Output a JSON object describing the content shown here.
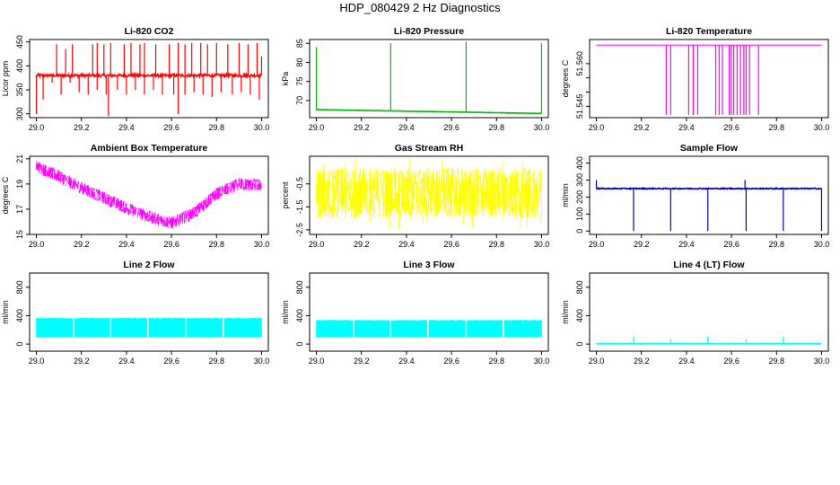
{
  "page_title": "HDP_080429  2 Hz Diagnostics",
  "chart_data": [
    {
      "id": "co2",
      "type": "line",
      "title": "Li-820 CO2",
      "xlabel": "",
      "ylabel": "Licor ppm",
      "xlim": [
        28.97,
        30.03
      ],
      "ylim": [
        292,
        455
      ],
      "xticks": [
        "29.0",
        "29.2",
        "29.4",
        "29.6",
        "29.8",
        "30.0"
      ],
      "yticks": [
        "300",
        "350",
        "400",
        "450"
      ],
      "color": "#ff0000",
      "series": [
        {
          "x": [
            29.0,
            29.2,
            29.4,
            29.6,
            29.8,
            30.0
          ],
          "values": [
            380,
            380,
            380,
            380,
            380,
            380
          ]
        }
      ],
      "pattern": "noisy",
      "noise": 3,
      "spikes_up": [
        [
          29.01,
          385
        ],
        [
          29.04,
          382
        ],
        [
          29.06,
          382
        ],
        [
          29.09,
          445
        ],
        [
          29.13,
          435
        ],
        [
          29.16,
          445
        ],
        [
          29.2,
          385
        ],
        [
          29.25,
          445
        ],
        [
          29.27,
          448
        ],
        [
          29.3,
          445
        ],
        [
          29.33,
          448
        ],
        [
          29.39,
          445
        ],
        [
          29.42,
          448
        ],
        [
          29.46,
          445
        ],
        [
          29.48,
          448
        ],
        [
          29.53,
          445
        ],
        [
          29.59,
          445
        ],
        [
          29.63,
          448
        ],
        [
          29.66,
          445
        ],
        [
          29.69,
          448
        ],
        [
          29.73,
          448
        ],
        [
          29.76,
          445
        ],
        [
          29.8,
          448
        ],
        [
          29.85,
          445
        ],
        [
          29.9,
          448
        ],
        [
          29.92,
          385
        ],
        [
          29.94,
          445
        ],
        [
          29.98,
          448
        ],
        [
          30.0,
          420
        ]
      ],
      "spikes_down": [
        [
          29.0,
          300
        ],
        [
          29.03,
          330
        ],
        [
          29.07,
          365
        ],
        [
          29.11,
          340
        ],
        [
          29.15,
          365
        ],
        [
          29.19,
          345
        ],
        [
          29.23,
          340
        ],
        [
          29.27,
          350
        ],
        [
          29.31,
          340
        ],
        [
          29.32,
          295
        ],
        [
          29.36,
          350
        ],
        [
          29.4,
          340
        ],
        [
          29.44,
          350
        ],
        [
          29.48,
          340
        ],
        [
          29.52,
          350
        ],
        [
          29.56,
          340
        ],
        [
          29.61,
          340
        ],
        [
          29.63,
          300
        ],
        [
          29.66,
          340
        ],
        [
          29.7,
          345
        ],
        [
          29.74,
          340
        ],
        [
          29.78,
          335
        ],
        [
          29.82,
          345
        ],
        [
          29.87,
          340
        ],
        [
          29.91,
          345
        ],
        [
          29.95,
          340
        ],
        [
          29.99,
          330
        ]
      ]
    },
    {
      "id": "pressure",
      "type": "line",
      "title": "Li-820 Pressure",
      "xlabel": "",
      "ylabel": "kPa",
      "xlim": [
        28.97,
        30.03
      ],
      "ylim": [
        65.5,
        86
      ],
      "xticks": [
        "29.0",
        "29.2",
        "29.4",
        "29.6",
        "29.8",
        "30.0"
      ],
      "yticks": [
        "70",
        "75",
        "80",
        "85"
      ],
      "color": "#00bb00",
      "series": [
        {
          "x": [
            29.0,
            30.0
          ],
          "values": [
            67.6,
            66.6
          ]
        }
      ],
      "pattern": "noisy",
      "noise": 0.05,
      "spikes_up": [
        [
          29.0,
          84
        ],
        [
          29.33,
          85
        ],
        [
          29.665,
          85.4
        ],
        [
          30.0,
          85
        ]
      ],
      "spikes_down": []
    },
    {
      "id": "licor-temp",
      "type": "line",
      "title": "Li-820 Temperature",
      "xlabel": "",
      "ylabel": "degrees C",
      "xlim": [
        28.97,
        30.03
      ],
      "ylim": [
        51.541,
        51.5685
      ],
      "xticks": [
        "29.0",
        "29.2",
        "29.4",
        "29.6",
        "29.8",
        "30.0"
      ],
      "yticks": [
        "51.545",
        "51.550",
        "51.555",
        "51.560"
      ],
      "ytick_values": [
        51.545,
        51.55,
        51.555,
        51.56
      ],
      "ytick_labels_shown": [
        "51.545",
        "51.560"
      ],
      "color": "#ff00ff",
      "series": [
        {
          "x": [
            29.0,
            30.0
          ],
          "values": [
            51.5665,
            51.5665
          ]
        }
      ],
      "pattern": "flat",
      "noise": 0,
      "spikes_up": [],
      "spikes_down": [
        [
          29.31,
          51.542
        ],
        [
          29.33,
          51.542
        ],
        [
          29.41,
          51.542
        ],
        [
          29.43,
          51.542
        ],
        [
          29.45,
          51.542
        ],
        [
          29.53,
          51.542
        ],
        [
          29.545,
          51.542
        ],
        [
          29.56,
          51.542
        ],
        [
          29.59,
          51.542
        ],
        [
          29.6,
          51.542
        ],
        [
          29.61,
          51.542
        ],
        [
          29.625,
          51.542
        ],
        [
          29.64,
          51.542
        ],
        [
          29.655,
          51.542
        ],
        [
          29.665,
          51.542
        ],
        [
          29.68,
          51.542
        ],
        [
          29.72,
          51.542
        ]
      ]
    },
    {
      "id": "ambient-temp",
      "type": "line",
      "title": "Ambient Box Temperature",
      "xlabel": "",
      "ylabel": "degrees C",
      "xlim": [
        28.97,
        30.03
      ],
      "ylim": [
        15,
        21.2
      ],
      "xticks": [
        "29.0",
        "29.2",
        "29.4",
        "29.6",
        "29.8",
        "30.0"
      ],
      "yticks": [
        "15",
        "17",
        "19",
        "21"
      ],
      "color": "#ff00ff",
      "series": [
        {
          "x": [
            29.0,
            29.1,
            29.2,
            29.3,
            29.4,
            29.5,
            29.6,
            29.7,
            29.8,
            29.9,
            30.0
          ],
          "values": [
            20.4,
            19.6,
            18.7,
            17.9,
            17.1,
            16.4,
            15.9,
            16.7,
            18.2,
            19.0,
            18.9
          ]
        }
      ],
      "pattern": "band",
      "noise": 0.5,
      "spikes_up": [],
      "spikes_down": []
    },
    {
      "id": "rh",
      "type": "line",
      "title": "Gas Stream RH",
      "xlabel": "",
      "ylabel": "percent",
      "xlim": [
        28.97,
        30.03
      ],
      "ylim": [
        -2.7,
        0.7
      ],
      "xticks": [
        "29.0",
        "29.2",
        "29.4",
        "29.6",
        "29.8",
        "30.0"
      ],
      "yticks": [
        "-2.5",
        "-1.5",
        "-0.5"
      ],
      "color": "#ffff00",
      "series": [
        {
          "x": [
            29.0,
            30.0
          ],
          "values": [
            -0.9,
            -0.9
          ]
        }
      ],
      "pattern": "band",
      "noise": 1.1,
      "spikes_up": [],
      "spikes_down": []
    },
    {
      "id": "sample-flow",
      "type": "line",
      "title": "Sample Flow",
      "xlabel": "",
      "ylabel": "ml/min",
      "xlim": [
        28.97,
        30.03
      ],
      "ylim": [
        -20,
        440
      ],
      "xticks": [
        "29.0",
        "29.2",
        "29.4",
        "29.6",
        "29.8",
        "30.0"
      ],
      "yticks": [
        "0",
        "100",
        "200",
        "300",
        "400"
      ],
      "color": "#0000cc",
      "series": [
        {
          "x": [
            29.0,
            30.0
          ],
          "values": [
            250,
            250
          ]
        }
      ],
      "pattern": "noisy",
      "noise": 3,
      "spikes_up": [
        [
          29.0,
          300
        ],
        [
          29.66,
          300
        ]
      ],
      "spikes_down": [
        [
          29.165,
          0
        ],
        [
          29.33,
          0
        ],
        [
          29.495,
          0
        ],
        [
          29.665,
          0
        ],
        [
          29.83,
          0
        ],
        [
          30.0,
          0
        ]
      ]
    },
    {
      "id": "line2-flow",
      "type": "line",
      "title": "Line 2 Flow",
      "xlabel": "",
      "ylabel": "ml/min",
      "xlim": [
        28.97,
        30.03
      ],
      "ylim": [
        -100,
        1000
      ],
      "xticks": [
        "29.0",
        "29.2",
        "29.4",
        "29.6",
        "29.8",
        "30.0"
      ],
      "yticks": [
        "0",
        "400",
        "800"
      ],
      "color": "#00ffff",
      "series": [
        {
          "x": [
            29.0,
            30.0
          ],
          "values": [
            240,
            240
          ]
        }
      ],
      "pattern": "block",
      "band_low": 100,
      "band_high": 370,
      "gaps": [
        29.165,
        29.33,
        29.495,
        29.665,
        29.83
      ],
      "spikes_up": [],
      "spikes_down": []
    },
    {
      "id": "line3-flow",
      "type": "line",
      "title": "Line 3 Flow",
      "xlabel": "",
      "ylabel": "ml/min",
      "xlim": [
        28.97,
        30.03
      ],
      "ylim": [
        -100,
        1000
      ],
      "xticks": [
        "29.0",
        "29.2",
        "29.4",
        "29.6",
        "29.8",
        "30.0"
      ],
      "yticks": [
        "0",
        "400",
        "800"
      ],
      "color": "#00ffff",
      "series": [
        {
          "x": [
            29.0,
            30.0
          ],
          "values": [
            220,
            220
          ]
        }
      ],
      "pattern": "block",
      "band_low": 100,
      "band_high": 340,
      "gaps": [
        29.165,
        29.33,
        29.495,
        29.665,
        29.83
      ],
      "spikes_up": [],
      "spikes_down": []
    },
    {
      "id": "line4-flow",
      "type": "line",
      "title": "Line 4 (LT) Flow",
      "xlabel": "",
      "ylabel": "ml/min",
      "xlim": [
        28.97,
        30.03
      ],
      "ylim": [
        -100,
        1000
      ],
      "xticks": [
        "29.0",
        "29.2",
        "29.4",
        "29.6",
        "29.8",
        "30.0"
      ],
      "yticks": [
        "0",
        "400",
        "800"
      ],
      "color": "#00ffff",
      "series": [
        {
          "x": [
            29.0,
            30.0
          ],
          "values": [
            5,
            5
          ]
        }
      ],
      "pattern": "noisy",
      "noise": 2,
      "spikes_up": [
        [
          29.165,
          110
        ],
        [
          29.33,
          70
        ],
        [
          29.495,
          110
        ],
        [
          29.665,
          70
        ],
        [
          29.83,
          110
        ]
      ],
      "spikes_down": []
    }
  ]
}
